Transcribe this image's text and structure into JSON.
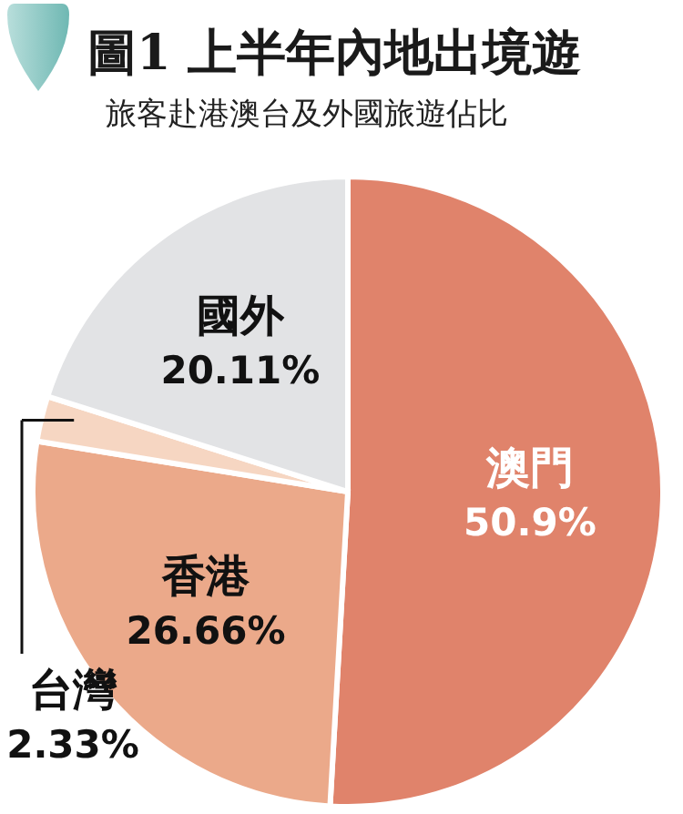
{
  "chart_data": {
    "type": "pie",
    "title": "圖1 上半年內地出境遊",
    "subtitle": "旅客赴港澳台及外國旅遊佔比",
    "categories": [
      "澳門",
      "香港",
      "台灣",
      "國外"
    ],
    "values": [
      50.9,
      26.66,
      2.33,
      20.11
    ],
    "colors": [
      "#e0836b",
      "#eba98a",
      "#f6d6c2",
      "#e2e3e5"
    ],
    "value_labels": [
      "50.9%",
      "26.66%",
      "2.33%",
      "20.11%"
    ]
  }
}
